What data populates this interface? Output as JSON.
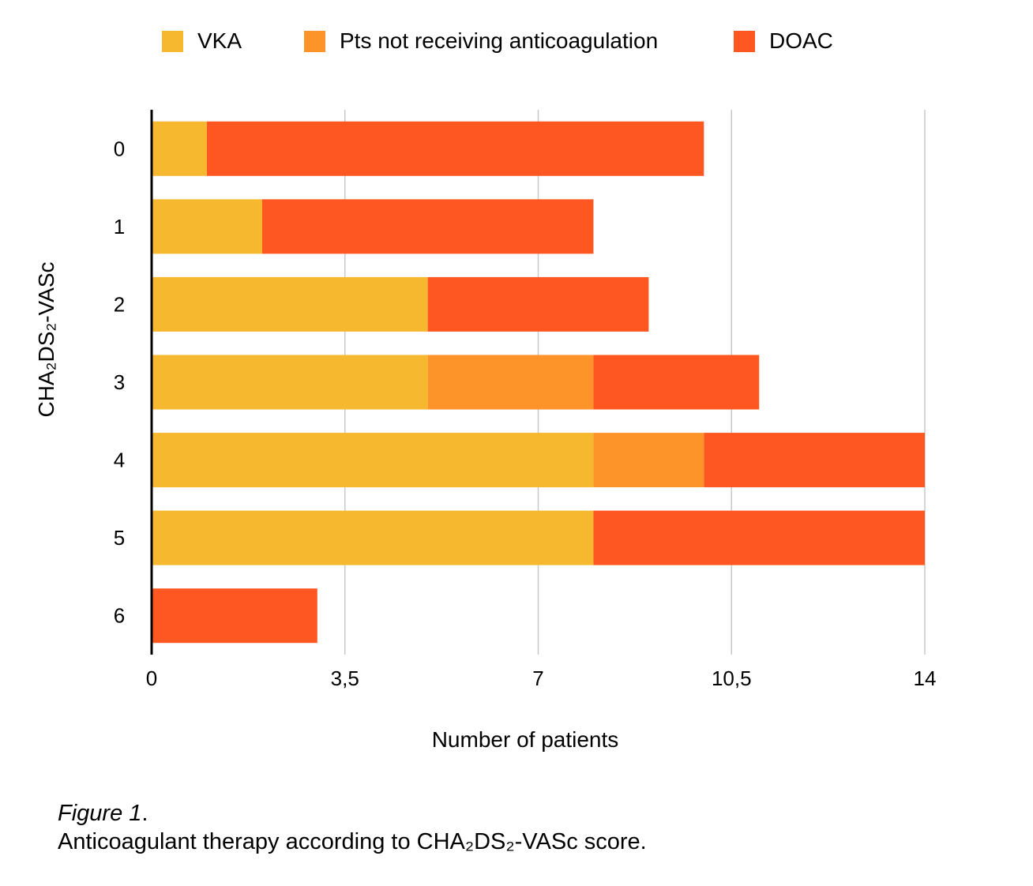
{
  "chart_data": {
    "type": "bar",
    "orientation": "horizontal",
    "stacked": true,
    "categories": [
      "0",
      "1",
      "2",
      "3",
      "4",
      "5",
      "6"
    ],
    "series": [
      {
        "name": "VKA",
        "color": "#F6B82E",
        "values": [
          1,
          2,
          5,
          5,
          8,
          8,
          0
        ]
      },
      {
        "name": "Pts not receiving anticoagulation",
        "color": "#FD942A",
        "values": [
          0,
          0,
          0,
          3,
          2,
          0,
          0
        ]
      },
      {
        "name": "DOAC",
        "color": "#FE5722",
        "values": [
          9,
          6,
          4,
          3,
          4,
          6,
          3
        ]
      }
    ],
    "xlabel": "Number of patients",
    "ylabel": "CHA₂DS₂-VASc",
    "xlim": [
      0,
      14
    ],
    "xticks": [
      "0",
      "3,5",
      "7",
      "10,5",
      "14"
    ],
    "xtick_values": [
      0,
      3.5,
      7,
      10.5,
      14
    ],
    "grid": "vertical",
    "legend_position": "top"
  },
  "caption": {
    "figure_label": "Figure 1",
    "figure_suffix": ".",
    "text": "Anticoagulant therapy according to CHA₂DS₂-VASc score."
  }
}
